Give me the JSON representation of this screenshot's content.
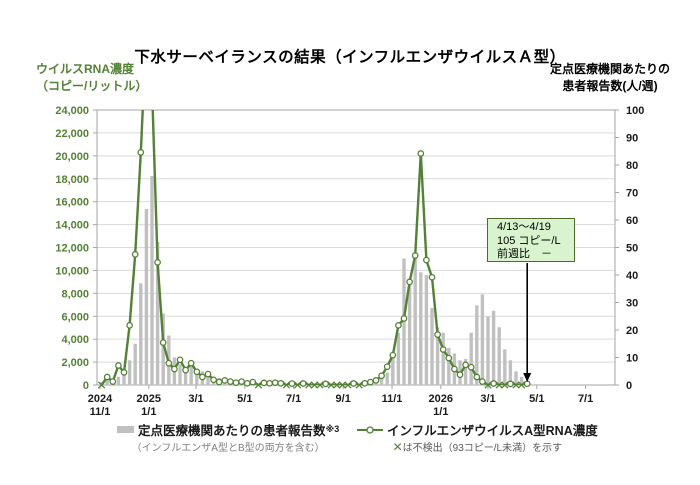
{
  "colors": {
    "green": "#538135",
    "bar": "#c0c0c0",
    "grid": "#d9d9d9",
    "axis": "#a6a6a6",
    "label_dark": "#1a1a1a",
    "annotation_bg": "#d9f3cf",
    "annotation_border": "#4a6e2a",
    "note_gray": "#808080"
  },
  "chart_data": {
    "type": "combo",
    "title": "下水サーベイランスの結果（インフルエンザウイルスＡ型）",
    "y_left": {
      "title_line1": "ウイルスRNA濃度",
      "title_line2": "（コピー/リットル）",
      "min": 0,
      "max": 24000,
      "step": 2000,
      "tick_format": "#,##0"
    },
    "y_right": {
      "title_line1": "定点医療機関あたりの",
      "title_line2": "患者報告数(人/週)",
      "min": 0,
      "max": 100,
      "step": 10
    },
    "x": {
      "ticks": [
        {
          "top": "2024",
          "bottom": "11/1",
          "day": 0
        },
        {
          "top": "2025",
          "bottom": "1/1",
          "day": 61
        },
        {
          "top": "3/1",
          "day": 120
        },
        {
          "top": "5/1",
          "day": 181
        },
        {
          "top": "7/1",
          "day": 242
        },
        {
          "top": "9/1",
          "day": 304
        },
        {
          "top": "11/1",
          "day": 365
        },
        {
          "top": "2026",
          "bottom": "1/1",
          "day": 426
        },
        {
          "top": "3/1",
          "day": 485
        },
        {
          "top": "5/1",
          "day": 546
        },
        {
          "top": "7/1",
          "day": 607
        }
      ],
      "dates": [
        "2024/11/3",
        "2024/11/10",
        "2024/11/17",
        "2024/11/24",
        "2024/12/1",
        "2024/12/8",
        "2024/12/15",
        "2024/12/22",
        "2024/12/29",
        "2025/1/5",
        "2025/1/12",
        "2025/1/19",
        "2025/1/26",
        "2025/2/2",
        "2025/2/9",
        "2025/2/16",
        "2025/2/23",
        "2025/3/2",
        "2025/3/9",
        "2025/3/16",
        "2025/3/23",
        "2025/3/30",
        "2025/4/6",
        "2025/4/13",
        "2025/4/20",
        "2025/4/27",
        "2025/5/4",
        "2025/5/11",
        "2025/5/18",
        "2025/5/25",
        "2025/6/1",
        "2025/6/8",
        "2025/6/15",
        "2025/6/22",
        "2025/6/29",
        "2025/7/6",
        "2025/7/13",
        "2025/7/20",
        "2025/7/27",
        "2025/8/3",
        "2025/8/10",
        "2025/8/17",
        "2025/8/24",
        "2025/8/31",
        "2025/9/7",
        "2025/9/14",
        "2025/9/21",
        "2025/9/28",
        "2025/10/5",
        "2025/10/12",
        "2025/10/19",
        "2025/10/26",
        "2025/11/2",
        "2025/11/9",
        "2025/11/16",
        "2025/11/23",
        "2025/11/30",
        "2025/12/7",
        "2025/12/14",
        "2025/12/21",
        "2025/12/28",
        "2026/1/4",
        "2026/1/11",
        "2026/1/18",
        "2026/1/25",
        "2026/2/1",
        "2026/2/8",
        "2026/2/15",
        "2026/2/22",
        "2026/3/1",
        "2026/3/8",
        "2026/3/15",
        "2026/3/22",
        "2026/3/29",
        "2026/4/5",
        "2026/4/12",
        "2026/4/19"
      ]
    },
    "series": [
      {
        "name": "定点医療機関あたりの患者報告数",
        "type": "bar",
        "axis": "right",
        "unit": "人/週",
        "values": [
          1,
          2,
          2,
          3,
          5,
          9,
          15,
          37,
          64,
          76,
          52,
          26,
          18,
          10,
          7.5,
          6.5,
          8.5,
          6,
          5,
          4,
          3,
          2.5,
          2,
          1.5,
          1.5,
          1,
          0.8,
          0.6,
          0.5,
          0.5,
          0.4,
          0.4,
          0.3,
          0.3,
          0.3,
          0.3,
          0.2,
          0.2,
          0.2,
          0.2,
          0.2,
          0.2,
          0.3,
          0.3,
          0.3,
          0.4,
          0.5,
          0.7,
          1,
          1.5,
          2.5,
          4.5,
          10,
          19,
          46,
          37,
          48,
          41,
          40,
          28,
          21,
          19,
          13.5,
          11.5,
          9,
          9.5,
          19,
          29,
          33,
          25,
          27,
          21,
          13,
          9,
          5,
          3,
          0
        ]
      },
      {
        "name": "インフルエンザウイルスA型RNA濃度",
        "type": "line",
        "axis": "left",
        "unit": "コピー/L",
        "non_detect_meaning": "null = 不検出（93コピー/L未満、✕マーカー）",
        "values": [
          null,
          700,
          300,
          1700,
          1100,
          5200,
          11400,
          20300,
          31000,
          26000,
          10700,
          3700,
          1900,
          1400,
          2200,
          1300,
          1900,
          1150,
          700,
          950,
          450,
          260,
          400,
          300,
          200,
          300,
          150,
          250,
          null,
          180,
          150,
          200,
          150,
          null,
          120,
          null,
          130,
          null,
          null,
          null,
          100,
          null,
          null,
          null,
          null,
          130,
          null,
          150,
          250,
          400,
          800,
          1600,
          2600,
          5200,
          5800,
          9000,
          11300,
          20200,
          10900,
          9400,
          4400,
          3100,
          2350,
          1400,
          900,
          1750,
          1550,
          700,
          300,
          null,
          130,
          null,
          null,
          100,
          null,
          null,
          105
        ]
      }
    ],
    "annotation": {
      "lines": [
        "4/13～4/19",
        "105 コピー/L",
        "前週比　－"
      ]
    },
    "legend": {
      "bar": {
        "label": "定点医療機関あたりの患者報告数",
        "sup": "※3",
        "note": "（インフルエンザA型とB型の両方を含む）"
      },
      "line": {
        "label": "インフルエンザウイルスA型RNA濃度",
        "note_marker": "✕",
        "note": "は不検出（93コピー/L未満）を示す"
      }
    }
  }
}
